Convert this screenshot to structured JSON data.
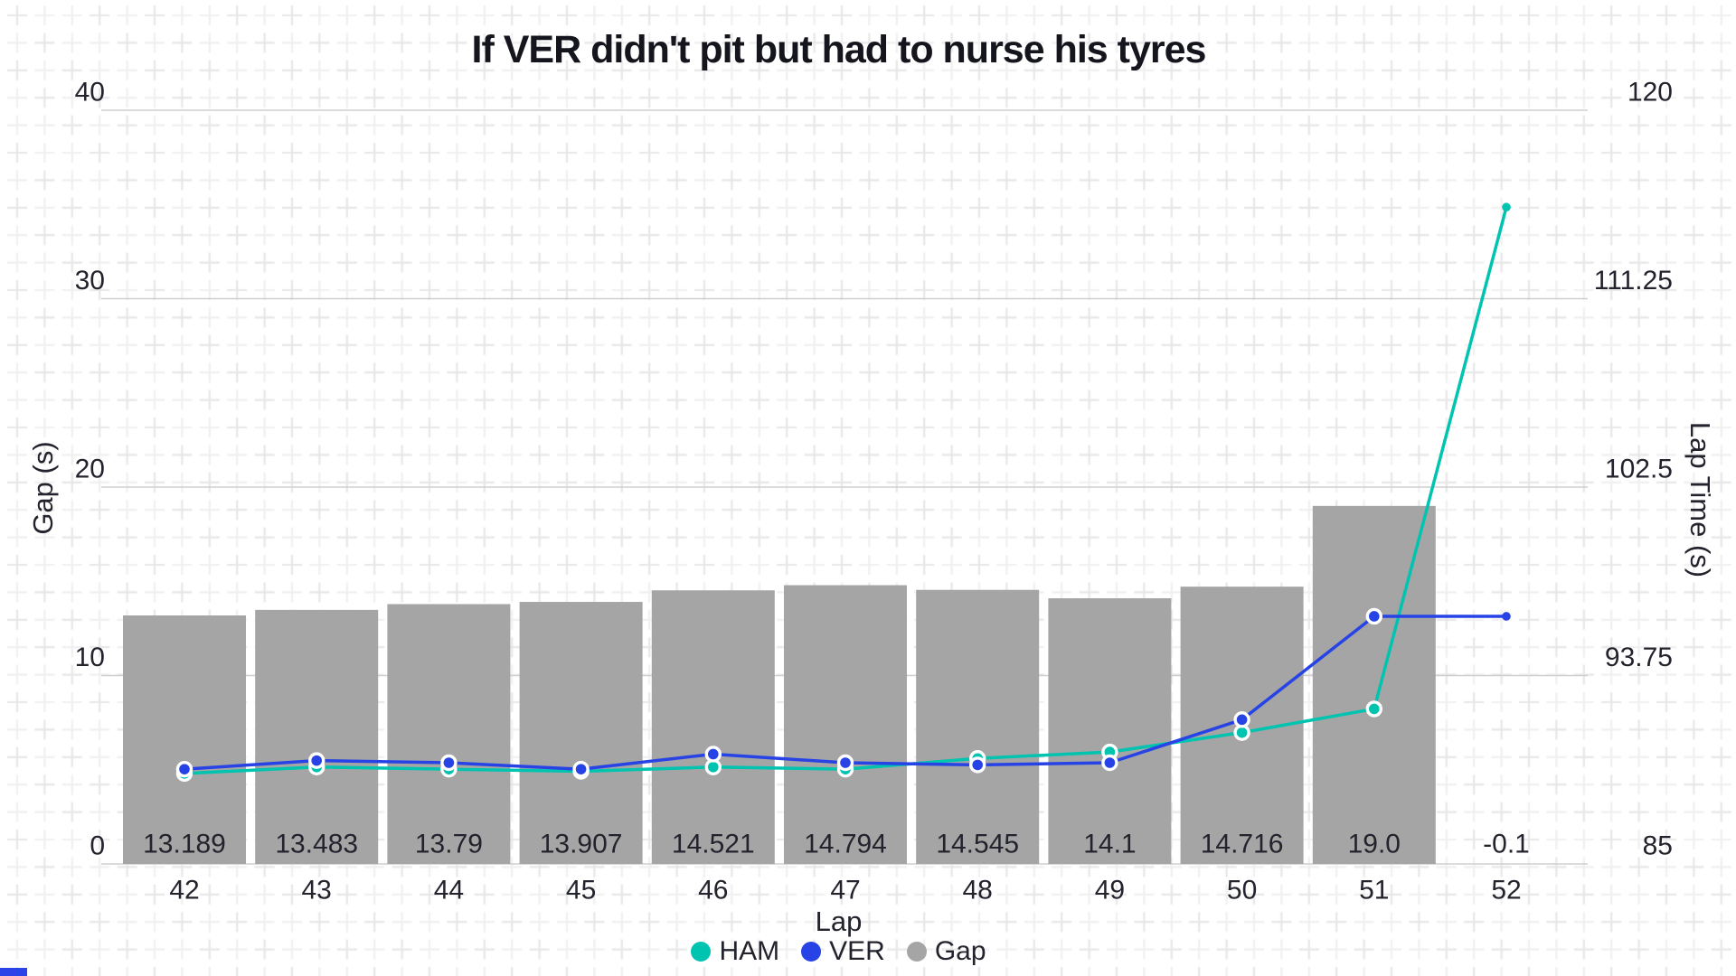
{
  "title": "If VER didn't pit but had to nurse his tyres",
  "legend": {
    "items": [
      {
        "label": "HAM",
        "color": "#00C3B0"
      },
      {
        "label": "VER",
        "color": "#2743E6"
      },
      {
        "label": "Gap",
        "color": "#A5A5A5"
      }
    ]
  },
  "decorations": {
    "corner_badge_color": "#2B44E7",
    "pattern_cross_color": "#ebebeb",
    "gridline_color": "#cfcfcf",
    "text_color": "#23232d"
  },
  "chart_data": {
    "type": "bar+line",
    "title": "If VER didn't pit but had to nurse his tyres",
    "x": [
      42,
      43,
      44,
      45,
      46,
      47,
      48,
      49,
      50,
      51,
      52
    ],
    "xlabel": "Lap",
    "x_tick_labels": [
      "42",
      "43",
      "44",
      "45",
      "46",
      "47",
      "48",
      "49",
      "50",
      "51",
      "52"
    ],
    "bar_series": {
      "name": "Gap",
      "axis": "left",
      "color": "#A5A5A5",
      "values": [
        13.189,
        13.483,
        13.79,
        13.907,
        14.521,
        14.794,
        14.545,
        14.1,
        14.716,
        19.0,
        -0.1
      ],
      "labels": [
        "13.189",
        "13.483",
        "13.79",
        "13.907",
        "14.521",
        "14.794",
        "14.545",
        "14.1",
        "14.716",
        "19.0",
        "-0.1"
      ]
    },
    "line_series": [
      {
        "name": "HAM",
        "axis": "right",
        "color": "#00C3B0",
        "values": [
          89.2,
          89.5,
          89.4,
          89.3,
          89.5,
          89.4,
          89.9,
          90.2,
          91.1,
          92.2,
          115.5
        ]
      },
      {
        "name": "VER",
        "axis": "right",
        "color": "#2743E6",
        "values": [
          89.4,
          89.8,
          89.7,
          89.4,
          90.1,
          89.7,
          89.6,
          89.7,
          91.7,
          96.5,
          96.5
        ]
      }
    ],
    "left_axis": {
      "label": "Gap (s)",
      "range": [
        0,
        40
      ],
      "ticks": [
        0,
        10,
        20,
        30,
        40
      ],
      "tick_labels": [
        "0",
        "10",
        "20",
        "30",
        "40"
      ]
    },
    "right_axis": {
      "label": "Lap Time (s)",
      "range": [
        85,
        120
      ],
      "ticks": [
        85,
        93.75,
        102.5,
        111.25,
        120
      ],
      "tick_labels": [
        "85",
        "93.75",
        "102.5",
        "111.25",
        "120"
      ]
    },
    "grid": true,
    "legend_position": "bottom-center"
  }
}
